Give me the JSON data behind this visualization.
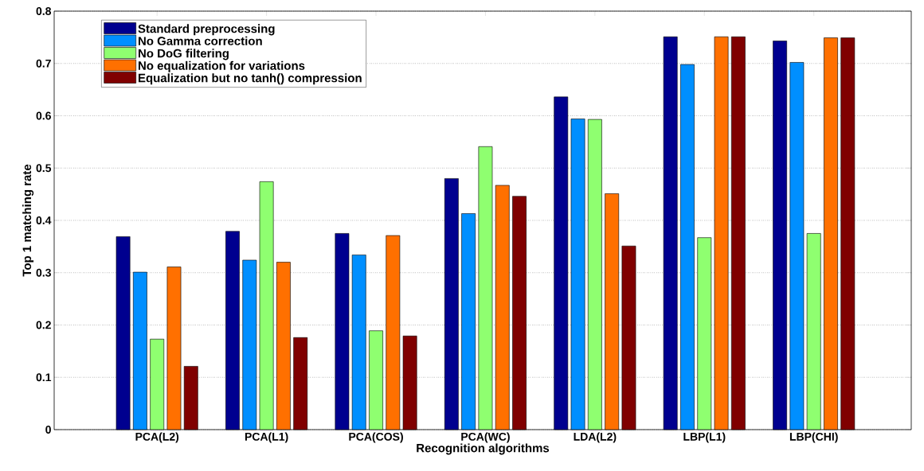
{
  "chart_data": {
    "type": "bar",
    "xlabel": "Recognition algorithms",
    "ylabel": "Top 1 matching rate",
    "categories": [
      "PCA(L2)",
      "PCA(L1)",
      "PCA(COS)",
      "PCA(WC)",
      "LDA(L2)",
      "LBP(L1)",
      "LBP(CHI)"
    ],
    "series": [
      {
        "name": "Standard preprocessing",
        "color": "#00008f",
        "values": [
          0.369,
          0.379,
          0.375,
          0.48,
          0.636,
          0.751,
          0.743
        ]
      },
      {
        "name": "No Gamma correction",
        "color": "#008fff",
        "values": [
          0.301,
          0.324,
          0.334,
          0.413,
          0.594,
          0.698,
          0.702
        ]
      },
      {
        "name": "No DoG filtering",
        "color": "#8fff70",
        "values": [
          0.173,
          0.474,
          0.189,
          0.541,
          0.593,
          0.367,
          0.375
        ]
      },
      {
        "name": "No equalization for variations",
        "color": "#ff7000",
        "values": [
          0.311,
          0.32,
          0.371,
          0.467,
          0.451,
          0.751,
          0.749
        ]
      },
      {
        "name": "Equalization but no tanh() compression",
        "color": "#800000",
        "values": [
          0.121,
          0.176,
          0.179,
          0.446,
          0.351,
          0.751,
          0.749
        ]
      }
    ],
    "ylim": [
      0,
      0.8
    ],
    "yticks": [
      0,
      0.1,
      0.2,
      0.3,
      0.4,
      0.5,
      0.6,
      0.7,
      0.8
    ],
    "grid": "y",
    "legend": "top left"
  }
}
